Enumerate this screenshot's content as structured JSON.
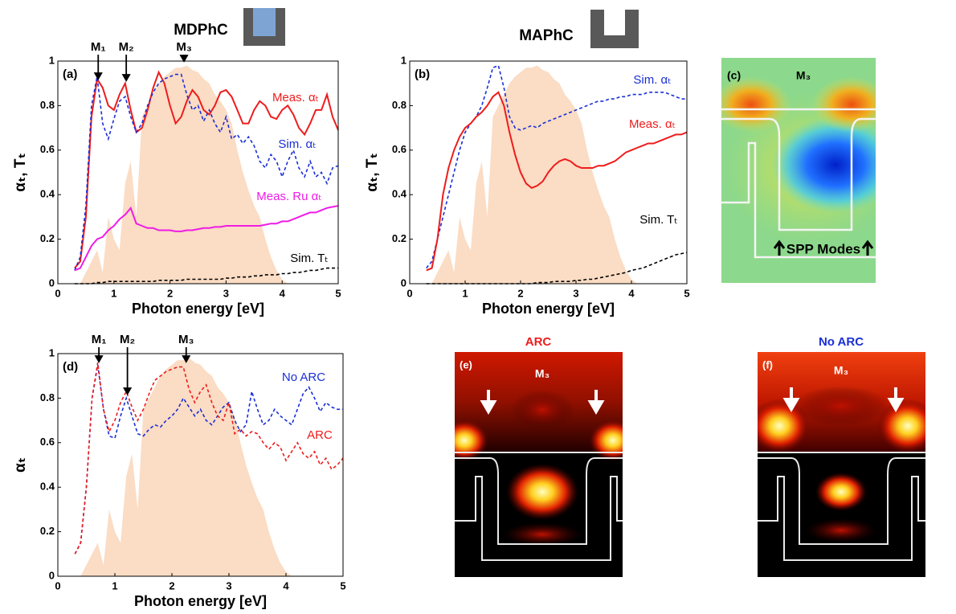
{
  "headers": [
    "MDPhC",
    "MAPhC"
  ],
  "field_maps": [
    {
      "panel": "(c)",
      "mode": "M₃",
      "note": "SPP Modes"
    },
    {
      "title": "ARC",
      "panel": "(e)",
      "mode": "M₃"
    },
    {
      "title": "No ARC",
      "panel": "(f)",
      "mode": "M₃"
    }
  ],
  "chart_data": [
    {
      "type": "line",
      "panel": "(a)",
      "xlabel": "Photon energy [eV]",
      "ylabel": "αₜ, Tₜ",
      "xlim": [
        0,
        5
      ],
      "ylim": [
        0,
        1
      ],
      "xticks": [
        0,
        1,
        2,
        3,
        4,
        5
      ],
      "yticks": [
        0,
        0.2,
        0.4,
        0.6,
        0.8,
        1
      ],
      "x": [
        0.3,
        0.4,
        0.5,
        0.6,
        0.7,
        0.8,
        0.9,
        1.0,
        1.1,
        1.2,
        1.3,
        1.4,
        1.5,
        1.6,
        1.7,
        1.8,
        1.9,
        2.0,
        2.1,
        2.2,
        2.3,
        2.4,
        2.5,
        2.6,
        2.7,
        2.8,
        2.9,
        3.0,
        3.1,
        3.2,
        3.3,
        3.4,
        3.5,
        3.6,
        3.7,
        3.8,
        3.9,
        4.0,
        4.1,
        4.2,
        4.3,
        4.4,
        4.5,
        4.6,
        4.7,
        4.8,
        4.9,
        5.0
      ],
      "annotations": [
        {
          "text": "M₁",
          "x": 0.72
        },
        {
          "text": "M₂",
          "x": 1.22
        },
        {
          "text": "M₃",
          "x": 2.25
        }
      ],
      "series": [
        {
          "style": "area",
          "color": "#fbdcc4",
          "values": [
            0,
            0,
            0.05,
            0.1,
            0.15,
            0.05,
            0.3,
            0.2,
            0.15,
            0.45,
            0.55,
            0.3,
            0.75,
            0.8,
            0.85,
            0.9,
            0.93,
            0.95,
            0.97,
            0.97,
            0.98,
            0.96,
            0.95,
            0.92,
            0.9,
            0.85,
            0.82,
            0.78,
            0.72,
            0.6,
            0.5,
            0.42,
            0.35,
            0.3,
            0.2,
            0.12,
            0.06,
            0.02,
            0,
            0,
            0,
            0,
            0,
            0,
            0,
            0,
            0,
            0
          ]
        },
        {
          "name": "Meas. αₜ",
          "style": "solid",
          "color": "#ee1c1c",
          "values": [
            0.07,
            0.1,
            0.3,
            0.75,
            0.92,
            0.88,
            0.8,
            0.78,
            0.85,
            0.9,
            0.78,
            0.68,
            0.7,
            0.78,
            0.88,
            0.95,
            0.9,
            0.8,
            0.72,
            0.75,
            0.82,
            0.87,
            0.84,
            0.78,
            0.76,
            0.8,
            0.86,
            0.87,
            0.84,
            0.78,
            0.72,
            0.72,
            0.78,
            0.82,
            0.8,
            0.75,
            0.74,
            0.78,
            0.8,
            0.76,
            0.7,
            0.67,
            0.72,
            0.78,
            0.78,
            0.85,
            0.75,
            0.69
          ]
        },
        {
          "name": "Sim. αₜ",
          "style": "dashed",
          "color": "#1a2fd6",
          "values": [
            0.06,
            0.12,
            0.35,
            0.8,
            0.93,
            0.72,
            0.65,
            0.74,
            0.82,
            0.84,
            0.75,
            0.68,
            0.72,
            0.8,
            0.86,
            0.9,
            0.92,
            0.93,
            0.94,
            0.94,
            0.85,
            0.78,
            0.8,
            0.73,
            0.78,
            0.72,
            0.68,
            0.75,
            0.65,
            0.67,
            0.63,
            0.66,
            0.62,
            0.55,
            0.52,
            0.58,
            0.55,
            0.48,
            0.55,
            0.6,
            0.52,
            0.48,
            0.55,
            0.48,
            0.5,
            0.45,
            0.52,
            0.53
          ]
        },
        {
          "name": "Meas. Ru αₜ",
          "style": "solid",
          "color": "#ee1ce6",
          "values": [
            0.06,
            0.07,
            0.12,
            0.17,
            0.2,
            0.21,
            0.24,
            0.26,
            0.29,
            0.31,
            0.34,
            0.27,
            0.26,
            0.25,
            0.25,
            0.24,
            0.24,
            0.24,
            0.235,
            0.235,
            0.24,
            0.24,
            0.245,
            0.25,
            0.25,
            0.255,
            0.255,
            0.26,
            0.26,
            0.26,
            0.26,
            0.26,
            0.26,
            0.26,
            0.265,
            0.27,
            0.27,
            0.28,
            0.28,
            0.29,
            0.3,
            0.31,
            0.32,
            0.32,
            0.33,
            0.34,
            0.345,
            0.35
          ]
        },
        {
          "name": "Sim. Tₜ",
          "style": "dashed",
          "color": "#000000",
          "values": [
            0,
            0,
            0,
            0,
            0.005,
            0.005,
            0.01,
            0.01,
            0.01,
            0.01,
            0.01,
            0.01,
            0.01,
            0.01,
            0.01,
            0.015,
            0.015,
            0.015,
            0.015,
            0.015,
            0.02,
            0.02,
            0.02,
            0.02,
            0.02,
            0.02,
            0.02,
            0.025,
            0.025,
            0.03,
            0.03,
            0.03,
            0.035,
            0.035,
            0.04,
            0.04,
            0.04,
            0.045,
            0.045,
            0.05,
            0.05,
            0.055,
            0.06,
            0.06,
            0.065,
            0.07,
            0.07,
            0.07
          ]
        }
      ]
    },
    {
      "type": "line",
      "panel": "(b)",
      "xlabel": "Photon energy [eV]",
      "ylabel": "αₜ, Tₜ",
      "xlim": [
        0,
        5
      ],
      "ylim": [
        0,
        1
      ],
      "xticks": [
        0,
        1,
        2,
        3,
        4,
        5
      ],
      "yticks": [
        0,
        0.2,
        0.4,
        0.6,
        0.8,
        1
      ],
      "x": [
        0.3,
        0.4,
        0.5,
        0.6,
        0.7,
        0.8,
        0.9,
        1.0,
        1.1,
        1.2,
        1.3,
        1.4,
        1.5,
        1.6,
        1.7,
        1.8,
        1.9,
        2.0,
        2.1,
        2.2,
        2.3,
        2.4,
        2.5,
        2.6,
        2.7,
        2.8,
        2.9,
        3.0,
        3.1,
        3.2,
        3.3,
        3.4,
        3.5,
        3.6,
        3.7,
        3.8,
        3.9,
        4.0,
        4.1,
        4.2,
        4.3,
        4.4,
        4.5,
        4.6,
        4.7,
        4.8,
        4.9,
        5.0
      ],
      "series": [
        {
          "style": "area",
          "color": "#fbdcc4",
          "values": [
            0,
            0,
            0.05,
            0.1,
            0.15,
            0.05,
            0.3,
            0.2,
            0.15,
            0.45,
            0.55,
            0.3,
            0.75,
            0.8,
            0.85,
            0.9,
            0.93,
            0.95,
            0.97,
            0.97,
            0.98,
            0.96,
            0.95,
            0.92,
            0.9,
            0.85,
            0.82,
            0.78,
            0.72,
            0.6,
            0.5,
            0.42,
            0.35,
            0.3,
            0.2,
            0.12,
            0.06,
            0.02,
            0,
            0,
            0,
            0,
            0,
            0,
            0,
            0,
            0,
            0
          ]
        },
        {
          "name": "Sim. αₜ",
          "style": "dashed",
          "color": "#1a2fd6",
          "values": [
            0.07,
            0.1,
            0.2,
            0.3,
            0.4,
            0.5,
            0.6,
            0.68,
            0.72,
            0.75,
            0.8,
            0.88,
            0.97,
            0.98,
            0.88,
            0.75,
            0.7,
            0.69,
            0.7,
            0.71,
            0.7,
            0.72,
            0.73,
            0.74,
            0.75,
            0.76,
            0.77,
            0.78,
            0.79,
            0.8,
            0.81,
            0.82,
            0.82,
            0.83,
            0.83,
            0.84,
            0.84,
            0.85,
            0.85,
            0.85,
            0.86,
            0.86,
            0.86,
            0.86,
            0.85,
            0.84,
            0.83,
            0.83
          ]
        },
        {
          "name": "Meas. αₜ",
          "style": "solid",
          "color": "#ee1c1c",
          "values": [
            0.06,
            0.07,
            0.2,
            0.4,
            0.52,
            0.6,
            0.66,
            0.7,
            0.72,
            0.75,
            0.77,
            0.8,
            0.84,
            0.86,
            0.8,
            0.68,
            0.58,
            0.5,
            0.45,
            0.43,
            0.44,
            0.46,
            0.5,
            0.53,
            0.55,
            0.56,
            0.55,
            0.53,
            0.52,
            0.52,
            0.52,
            0.53,
            0.53,
            0.54,
            0.55,
            0.57,
            0.59,
            0.6,
            0.61,
            0.62,
            0.63,
            0.63,
            0.64,
            0.65,
            0.66,
            0.67,
            0.67,
            0.68
          ]
        },
        {
          "name": "Sim. Tₜ",
          "style": "dashed",
          "color": "#000000",
          "values": [
            0,
            0,
            0,
            0,
            0,
            0,
            0,
            0,
            0,
            0,
            0,
            0,
            0,
            0,
            0,
            0,
            0,
            0,
            0,
            0,
            0.005,
            0.005,
            0.005,
            0.01,
            0.01,
            0.01,
            0.01,
            0.015,
            0.015,
            0.02,
            0.02,
            0.025,
            0.03,
            0.035,
            0.04,
            0.045,
            0.05,
            0.06,
            0.065,
            0.07,
            0.08,
            0.09,
            0.1,
            0.11,
            0.12,
            0.13,
            0.135,
            0.14
          ]
        }
      ]
    },
    {
      "type": "line",
      "panel": "(d)",
      "xlabel": "Photon energy [eV]",
      "ylabel": "αₜ",
      "xlim": [
        0,
        5
      ],
      "ylim": [
        0,
        1
      ],
      "xticks": [
        0,
        1,
        2,
        3,
        4,
        5
      ],
      "yticks": [
        0,
        0.2,
        0.4,
        0.6,
        0.8,
        1
      ],
      "x": [
        0.3,
        0.4,
        0.5,
        0.6,
        0.7,
        0.8,
        0.9,
        1.0,
        1.1,
        1.2,
        1.3,
        1.4,
        1.5,
        1.6,
        1.7,
        1.8,
        1.9,
        2.0,
        2.1,
        2.2,
        2.3,
        2.4,
        2.5,
        2.6,
        2.7,
        2.8,
        2.9,
        3.0,
        3.1,
        3.2,
        3.3,
        3.4,
        3.5,
        3.6,
        3.7,
        3.8,
        3.9,
        4.0,
        4.1,
        4.2,
        4.3,
        4.4,
        4.5,
        4.6,
        4.7,
        4.8,
        4.9,
        5.0
      ],
      "annotations": [
        {
          "text": "M₁",
          "x": 0.72
        },
        {
          "text": "M₂",
          "x": 1.22
        },
        {
          "text": "M₃",
          "x": 2.25
        }
      ],
      "series": [
        {
          "style": "area",
          "color": "#fbdcc4",
          "values": [
            0,
            0,
            0.05,
            0.1,
            0.15,
            0.05,
            0.3,
            0.2,
            0.15,
            0.45,
            0.55,
            0.3,
            0.75,
            0.8,
            0.85,
            0.9,
            0.93,
            0.95,
            0.97,
            0.97,
            0.98,
            0.96,
            0.95,
            0.92,
            0.9,
            0.85,
            0.82,
            0.78,
            0.72,
            0.6,
            0.5,
            0.42,
            0.35,
            0.3,
            0.2,
            0.12,
            0.06,
            0.02,
            0,
            0,
            0,
            0,
            0,
            0,
            0,
            0,
            0,
            0
          ]
        },
        {
          "name": "No ARC",
          "style": "dashed",
          "color": "#1a2fd6",
          "values": [
            0.1,
            0.15,
            0.4,
            0.8,
            0.95,
            0.75,
            0.63,
            0.62,
            0.72,
            0.8,
            0.72,
            0.64,
            0.63,
            0.66,
            0.68,
            0.67,
            0.7,
            0.72,
            0.75,
            0.8,
            0.76,
            0.72,
            0.75,
            0.7,
            0.68,
            0.72,
            0.76,
            0.78,
            0.7,
            0.65,
            0.68,
            0.83,
            0.75,
            0.68,
            0.7,
            0.75,
            0.72,
            0.7,
            0.68,
            0.75,
            0.82,
            0.85,
            0.8,
            0.74,
            0.78,
            0.76,
            0.75,
            0.75
          ]
        },
        {
          "name": "ARC",
          "style": "dashed",
          "color": "#ee1c1c",
          "values": [
            0.1,
            0.15,
            0.4,
            0.8,
            0.96,
            0.75,
            0.65,
            0.7,
            0.78,
            0.83,
            0.76,
            0.7,
            0.75,
            0.82,
            0.88,
            0.9,
            0.92,
            0.93,
            0.94,
            0.94,
            0.84,
            0.78,
            0.83,
            0.86,
            0.78,
            0.72,
            0.7,
            0.78,
            0.64,
            0.66,
            0.63,
            0.65,
            0.64,
            0.6,
            0.57,
            0.6,
            0.58,
            0.52,
            0.56,
            0.6,
            0.55,
            0.53,
            0.56,
            0.5,
            0.53,
            0.48,
            0.5,
            0.53
          ]
        }
      ]
    }
  ]
}
